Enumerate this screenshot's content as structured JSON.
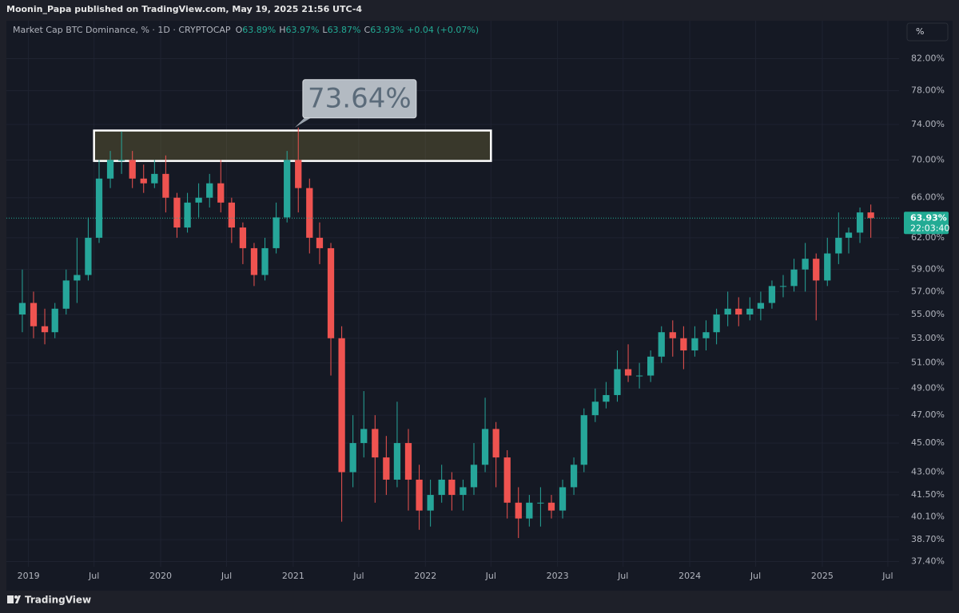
{
  "page": {
    "publisher": "Moonin_Papa published on TradingView.com, May 19, 2025 21:56 UTC-4",
    "footer": "TradingView",
    "scale_button": "%"
  },
  "chart_data": {
    "type": "candlestick",
    "title": "Market Cap BTC Dominance, % · 1D · CRYPTOCAP",
    "legend_values": [
      {
        "key": "O",
        "text": "63.89%"
      },
      {
        "key": "H",
        "text": "63.97%"
      },
      {
        "key": "L",
        "text": "63.87%"
      },
      {
        "key": "C",
        "text": "63.93%"
      }
    ],
    "change": "+0.04 (+0.07%)",
    "up_color": "#26a69a",
    "down_color": "#ef5350",
    "log": true,
    "grid": true,
    "x": [
      "2018-12",
      "2019-01",
      "2019-02",
      "2019-03",
      "2019-04",
      "2019-05",
      "2019-06",
      "2019-07",
      "2019-08",
      "2019-09",
      "2019-10",
      "2019-11",
      "2019-12",
      "2020-01",
      "2020-02",
      "2020-03",
      "2020-04",
      "2020-05",
      "2020-06",
      "2020-07",
      "2020-08",
      "2020-09",
      "2020-10",
      "2020-11",
      "2020-12",
      "2021-01",
      "2021-02",
      "2021-03",
      "2021-04",
      "2021-05",
      "2021-06",
      "2021-07",
      "2021-08",
      "2021-09",
      "2021-10",
      "2021-11",
      "2021-12",
      "2022-01",
      "2022-02",
      "2022-03",
      "2022-04",
      "2022-05",
      "2022-06",
      "2022-07",
      "2022-08",
      "2022-09",
      "2022-10",
      "2022-11",
      "2022-12",
      "2023-01",
      "2023-02",
      "2023-03",
      "2023-04",
      "2023-05",
      "2023-06",
      "2023-07",
      "2023-08",
      "2023-09",
      "2023-10",
      "2023-11",
      "2023-12",
      "2024-01",
      "2024-02",
      "2024-03",
      "2024-04",
      "2024-05",
      "2024-06",
      "2024-07",
      "2024-08",
      "2024-09",
      "2024-10",
      "2024-11",
      "2024-12",
      "2025-01",
      "2025-02",
      "2025-03",
      "2025-04",
      "2025-05"
    ],
    "open": [
      55,
      56,
      54,
      53.5,
      55.5,
      58,
      58.5,
      62,
      68,
      70,
      70,
      68,
      67.5,
      68.5,
      66,
      63,
      65.5,
      66,
      67.5,
      65.5,
      63,
      61,
      58.5,
      61,
      64,
      70,
      67,
      62,
      61,
      53,
      43,
      45,
      46,
      44,
      42.5,
      45,
      42.5,
      40.5,
      41.5,
      42.5,
      41.5,
      42,
      43.5,
      46,
      44,
      41,
      40,
      41,
      41,
      40.5,
      42,
      43.5,
      47,
      48,
      48.5,
      50.5,
      50,
      50,
      51.5,
      53.5,
      53,
      52,
      53,
      53.5,
      55,
      55.5,
      55,
      55.5,
      56,
      57.5,
      57.5,
      59,
      60,
      58,
      60.5,
      62,
      62.5,
      64.5
    ],
    "high": [
      59,
      57,
      55.5,
      56,
      59,
      62,
      64,
      70,
      71,
      73.2,
      71,
      69.5,
      70,
      70.5,
      66.5,
      66.5,
      67.5,
      68.5,
      70,
      66,
      63.5,
      61.5,
      62,
      65.5,
      71,
      73.64,
      68,
      63.5,
      61.5,
      54,
      47,
      48.8,
      47,
      45.5,
      48,
      46,
      43.5,
      42.5,
      43.5,
      43,
      42.5,
      45,
      48.3,
      46.5,
      44.5,
      42,
      41.5,
      42,
      41.5,
      42.5,
      44,
      47.5,
      49,
      49.5,
      52,
      52.5,
      51,
      52,
      54,
      54.5,
      54,
      54,
      54.5,
      55.5,
      57,
      56.5,
      56.5,
      57,
      58,
      58.5,
      60,
      61.5,
      60.5,
      62,
      64.5,
      63,
      65,
      65.3
    ],
    "low": [
      53.5,
      53,
      52.5,
      53,
      55,
      56,
      58,
      61.5,
      67,
      68.5,
      67,
      66.5,
      67,
      64.5,
      62,
      62.5,
      64,
      65,
      64.5,
      61.5,
      59.5,
      57.5,
      58,
      60.5,
      63.5,
      64.5,
      60.5,
      59.5,
      50,
      39.8,
      42,
      44,
      41,
      41.5,
      42,
      40.5,
      39.3,
      39.5,
      41,
      40.5,
      40.5,
      41.5,
      43,
      42,
      40,
      38.8,
      39.5,
      39.5,
      40,
      40,
      41.5,
      43,
      46.5,
      47.5,
      48,
      49.5,
      49,
      49.5,
      51,
      51.5,
      50.5,
      51.5,
      52,
      52.5,
      54,
      54,
      54.5,
      54.5,
      55.5,
      56.5,
      57,
      57,
      54.5,
      57.5,
      59.5,
      60.5,
      61.5,
      62
    ],
    "close": [
      56,
      54,
      53.5,
      55.5,
      58,
      58.5,
      62,
      68,
      70,
      70,
      68,
      67.5,
      68.5,
      66,
      63,
      65.5,
      66,
      67.5,
      65.5,
      63,
      61,
      58.5,
      61,
      64,
      70,
      67,
      62,
      61,
      53,
      43,
      45,
      46,
      44,
      42.5,
      45,
      42.5,
      40.5,
      41.5,
      42.5,
      41.5,
      42,
      43.5,
      46,
      44,
      41,
      40,
      41,
      41,
      40.5,
      42,
      43.5,
      47,
      48,
      48.5,
      50.5,
      50,
      50,
      51.5,
      53.5,
      53,
      52,
      53,
      53.5,
      55,
      55.5,
      55,
      55.5,
      56,
      57.5,
      57.5,
      59,
      60,
      58,
      60.5,
      62,
      62.5,
      64.5,
      63.93
    ],
    "xlim": [
      "2018-11",
      "2025-08"
    ],
    "xticks": [
      {
        "value": "2019-01",
        "label": "2019"
      },
      {
        "value": "2019-07",
        "label": "Jul"
      },
      {
        "value": "2020-01",
        "label": "2020"
      },
      {
        "value": "2020-07",
        "label": "Jul"
      },
      {
        "value": "2021-01",
        "label": "2021"
      },
      {
        "value": "2021-07",
        "label": "Jul"
      },
      {
        "value": "2022-01",
        "label": "2022"
      },
      {
        "value": "2022-07",
        "label": "Jul"
      },
      {
        "value": "2023-01",
        "label": "2023"
      },
      {
        "value": "2023-07",
        "label": "Jul"
      },
      {
        "value": "2024-01",
        "label": "2024"
      },
      {
        "value": "2024-07",
        "label": "Jul"
      },
      {
        "value": "2025-01",
        "label": "2025"
      },
      {
        "value": "2025-07",
        "label": "Jul"
      }
    ],
    "ylim": [
      37.1,
      87
    ],
    "yticks": [
      {
        "value": 82,
        "label": "82.00%"
      },
      {
        "value": 78,
        "label": "78.00%"
      },
      {
        "value": 74,
        "label": "74.00%"
      },
      {
        "value": 70,
        "label": "70.00%"
      },
      {
        "value": 66,
        "label": "66.00%"
      },
      {
        "value": 62,
        "label": "62.00%"
      },
      {
        "value": 59,
        "label": "59.00%"
      },
      {
        "value": 57,
        "label": "57.00%"
      },
      {
        "value": 55,
        "label": "55.00%"
      },
      {
        "value": 53,
        "label": "53.00%"
      },
      {
        "value": 51,
        "label": "51.00%"
      },
      {
        "value": 49,
        "label": "49.00%"
      },
      {
        "value": 47,
        "label": "47.00%"
      },
      {
        "value": 45,
        "label": "45.00%"
      },
      {
        "value": 43,
        "label": "43.00%"
      },
      {
        "value": 41.5,
        "label": "41.50%"
      },
      {
        "value": 40.1,
        "label": "40.10%"
      },
      {
        "value": 38.7,
        "label": "38.70%"
      },
      {
        "value": 37.4,
        "label": "37.40%"
      }
    ],
    "last_price": {
      "value": 63.93,
      "label": "63.93%"
    },
    "countdown": "22:03:40",
    "zone": {
      "x": [
        "2019-07",
        "2022-07"
      ],
      "y": [
        69.9,
        73.3
      ]
    },
    "annotation": {
      "x": "2021-01",
      "value": 73.64,
      "label": "73.64%"
    }
  }
}
